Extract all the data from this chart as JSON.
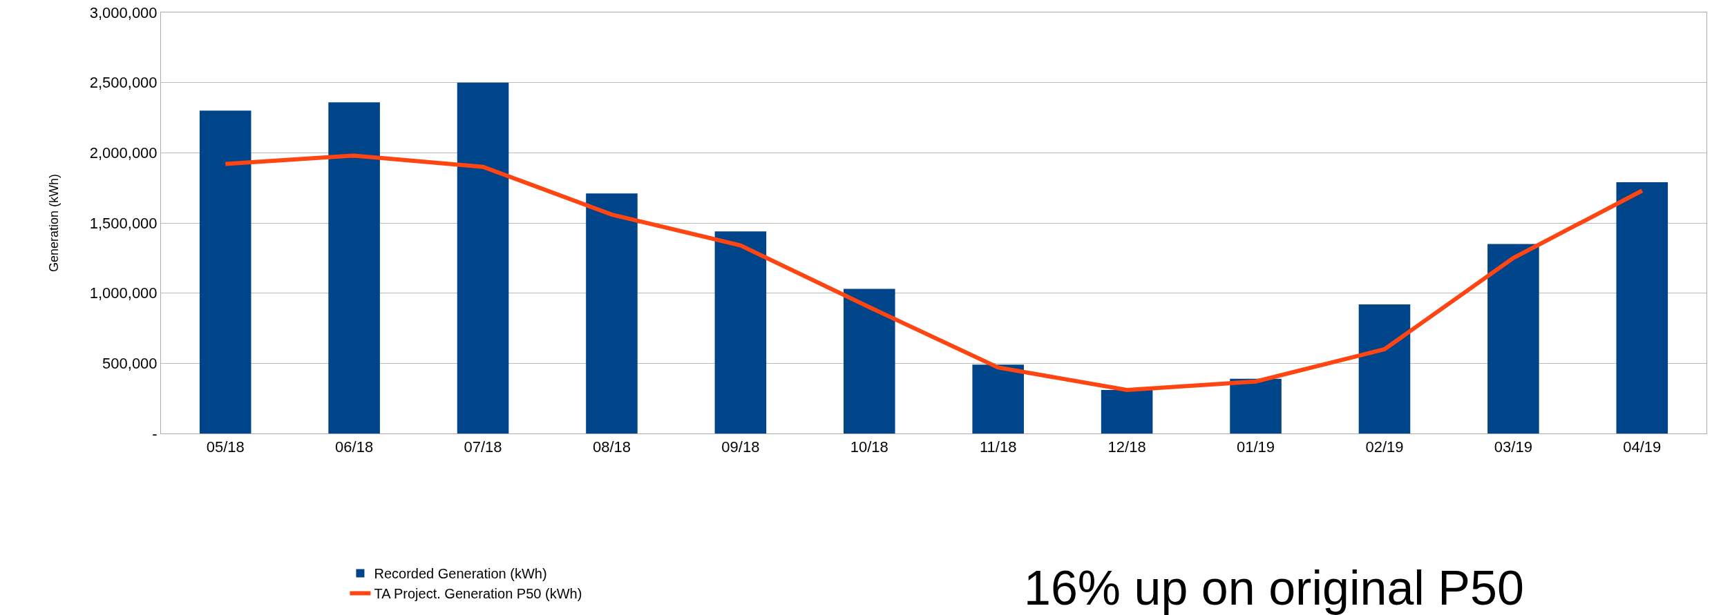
{
  "chart_data": {
    "type": "bar",
    "ylabel": "Generation (kWh)",
    "categories": [
      "05/18",
      "06/18",
      "07/18",
      "08/18",
      "09/18",
      "10/18",
      "11/18",
      "12/18",
      "01/19",
      "02/19",
      "03/19",
      "04/19"
    ],
    "series": [
      {
        "name": "Recorded Generation (kWh)",
        "color": "#00448a",
        "values": [
          2300000,
          2360000,
          2500000,
          1710000,
          1440000,
          1030000,
          490000,
          310000,
          390000,
          920000,
          1350000,
          1790000
        ]
      },
      {
        "name": "TA Project. Generation P50 (kWh)",
        "type": "line",
        "color": "#ff4511",
        "values": [
          1920000,
          1980000,
          1900000,
          1560000,
          1340000,
          900000,
          470000,
          310000,
          370000,
          600000,
          1250000,
          1730000
        ]
      }
    ],
    "ylim": [
      0,
      3000000
    ],
    "yticks": [
      {
        "value": 0,
        "label": "-"
      },
      {
        "value": 500000,
        "label": "500,000"
      },
      {
        "value": 1000000,
        "label": "1,000,000"
      },
      {
        "value": 1500000,
        "label": "1,500,000"
      },
      {
        "value": 2000000,
        "label": "2,000,000"
      },
      {
        "value": 2500000,
        "label": "2,500,000"
      },
      {
        "value": 3000000,
        "label": "3,000,000"
      }
    ],
    "grid": "y",
    "legend": "bottom left",
    "marker": "none",
    "line_style": "solid",
    "annotations": [
      "16% up on original P50"
    ]
  }
}
